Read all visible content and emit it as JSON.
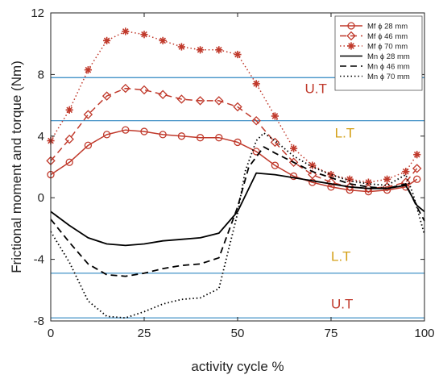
{
  "chart_data": {
    "type": "line",
    "title": "",
    "xlabel": "activity cycle %",
    "ylabel": "Frictional moment and torque (Nm)",
    "xlim": [
      0,
      100
    ],
    "ylim": [
      -8,
      12
    ],
    "xticks": [
      0,
      25,
      50,
      75,
      100
    ],
    "yticks": [
      -8,
      -4,
      0,
      4,
      8,
      12
    ],
    "grid": false,
    "legend_position": "top-right",
    "threshold_lines": [
      {
        "value": 7.8,
        "label": "U.T",
        "label_x": 68,
        "label_y": 6.8,
        "color": "#2e86c1"
      },
      {
        "value": 5.0,
        "label": "L.T",
        "label_x": 76,
        "label_y": 3.9,
        "color": "#2e86c1"
      },
      {
        "value": -4.9,
        "label": "L.T",
        "label_x": 75,
        "label_y": -4.1,
        "color": "#2e86c1"
      },
      {
        "value": -7.8,
        "label": "U.T",
        "label_x": 75,
        "label_y": -7.2,
        "color": "#2e86c1"
      }
    ],
    "annotation_colors": {
      "U.T": "#c0392b",
      "L.T": "#d4a017"
    },
    "x": [
      0,
      5,
      10,
      15,
      20,
      25,
      30,
      35,
      40,
      45,
      50,
      55,
      60,
      65,
      70,
      75,
      80,
      85,
      90,
      95,
      98
    ],
    "series": [
      {
        "name": "Mf ϕ 28 mm",
        "color": "#c0392b",
        "dash": "solid",
        "marker": "circle",
        "values": [
          1.5,
          2.3,
          3.4,
          4.1,
          4.4,
          4.3,
          4.1,
          4.0,
          3.9,
          3.9,
          3.6,
          3.0,
          2.1,
          1.4,
          1.0,
          0.7,
          0.5,
          0.4,
          0.5,
          0.7,
          1.2
        ]
      },
      {
        "name": "Mf ϕ 46 mm",
        "color": "#c0392b",
        "dash": "dashed",
        "marker": "diamond",
        "values": [
          2.4,
          3.8,
          5.4,
          6.6,
          7.1,
          7.0,
          6.7,
          6.4,
          6.3,
          6.3,
          5.9,
          5.0,
          3.6,
          2.3,
          1.5,
          1.0,
          0.7,
          0.6,
          0.7,
          1.0,
          1.9
        ]
      },
      {
        "name": "Mf ϕ 70 mm",
        "color": "#c0392b",
        "dash": "dotted",
        "marker": "star",
        "values": [
          3.7,
          5.7,
          8.3,
          10.2,
          10.8,
          10.6,
          10.2,
          9.8,
          9.6,
          9.6,
          9.3,
          7.4,
          5.3,
          3.2,
          2.1,
          1.5,
          1.2,
          1.0,
          1.2,
          1.7,
          2.8
        ]
      },
      {
        "name": "Mn ϕ 28 mm",
        "color": "#000000",
        "dash": "solid",
        "marker": "none",
        "x": [
          0,
          5,
          10,
          15,
          20,
          25,
          30,
          35,
          40,
          45,
          50,
          55,
          60,
          65,
          70,
          75,
          80,
          85,
          90,
          95,
          98,
          100
        ],
        "values": [
          -0.9,
          -1.8,
          -2.6,
          -3.0,
          -3.1,
          -3.0,
          -2.8,
          -2.7,
          -2.6,
          -2.3,
          -0.9,
          1.6,
          1.5,
          1.3,
          1.1,
          0.9,
          0.7,
          0.6,
          0.6,
          0.8,
          -0.5,
          -0.9
        ]
      },
      {
        "name": "Mn ϕ 46 mm",
        "color": "#000000",
        "dash": "dashed",
        "marker": "none",
        "x": [
          0,
          5,
          10,
          15,
          20,
          25,
          30,
          35,
          40,
          45,
          50,
          53,
          57,
          60,
          65,
          70,
          75,
          80,
          85,
          90,
          95,
          98,
          100
        ],
        "values": [
          -1.4,
          -2.9,
          -4.3,
          -5.0,
          -5.1,
          -4.9,
          -4.6,
          -4.4,
          -4.3,
          -3.9,
          -0.6,
          2.0,
          3.3,
          2.9,
          2.3,
          1.7,
          1.3,
          0.9,
          0.7,
          0.6,
          0.9,
          -0.6,
          -1.5
        ]
      },
      {
        "name": "Mn ϕ 70 mm",
        "color": "#000000",
        "dash": "dotted",
        "marker": "none",
        "x": [
          0,
          5,
          10,
          15,
          20,
          25,
          30,
          35,
          40,
          45,
          50,
          52,
          55,
          57,
          60,
          65,
          70,
          75,
          80,
          85,
          90,
          95,
          97,
          100
        ],
        "values": [
          -2.2,
          -4.2,
          -6.7,
          -7.7,
          -7.8,
          -7.4,
          -6.9,
          -6.6,
          -6.5,
          -5.9,
          -1.0,
          1.7,
          3.7,
          4.2,
          3.7,
          2.7,
          2.0,
          1.5,
          1.1,
          0.9,
          0.8,
          1.5,
          0.2,
          -2.4
        ]
      }
    ]
  }
}
